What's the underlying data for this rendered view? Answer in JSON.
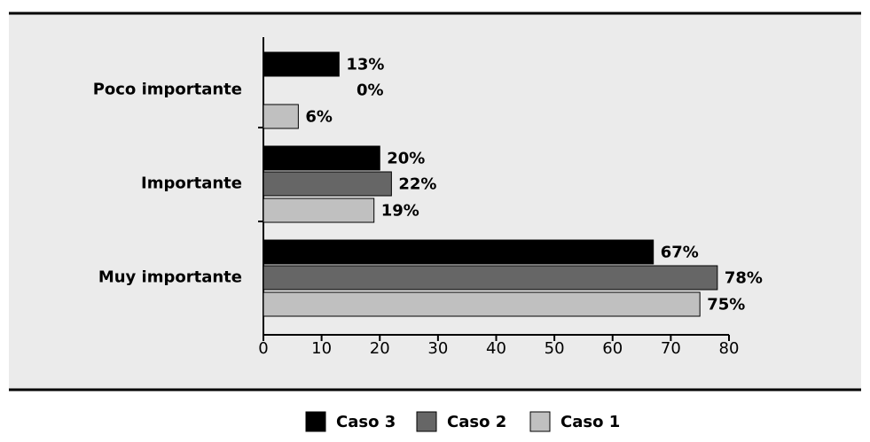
{
  "chart_data": {
    "type": "hbar",
    "categories": [
      "Poco importante",
      "Importante",
      "Muy importante"
    ],
    "series": [
      {
        "name": "Caso 3",
        "color": "#000000",
        "values": [
          13,
          20,
          67
        ],
        "value_labels": [
          "13%",
          "20%",
          "67%"
        ]
      },
      {
        "name": "Caso 2",
        "color": "#666666",
        "values": [
          0,
          22,
          78
        ],
        "value_labels": [
          "0%",
          "22%",
          "78%"
        ]
      },
      {
        "name": "Caso 1",
        "color": "#c0c0c0",
        "values": [
          6,
          19,
          75
        ],
        "value_labels": [
          "6%",
          "19%",
          "75%"
        ]
      }
    ],
    "xlim": [
      0,
      80
    ],
    "xticks": [
      0,
      10,
      20,
      30,
      40,
      50,
      60,
      70,
      80
    ],
    "grid": false
  }
}
